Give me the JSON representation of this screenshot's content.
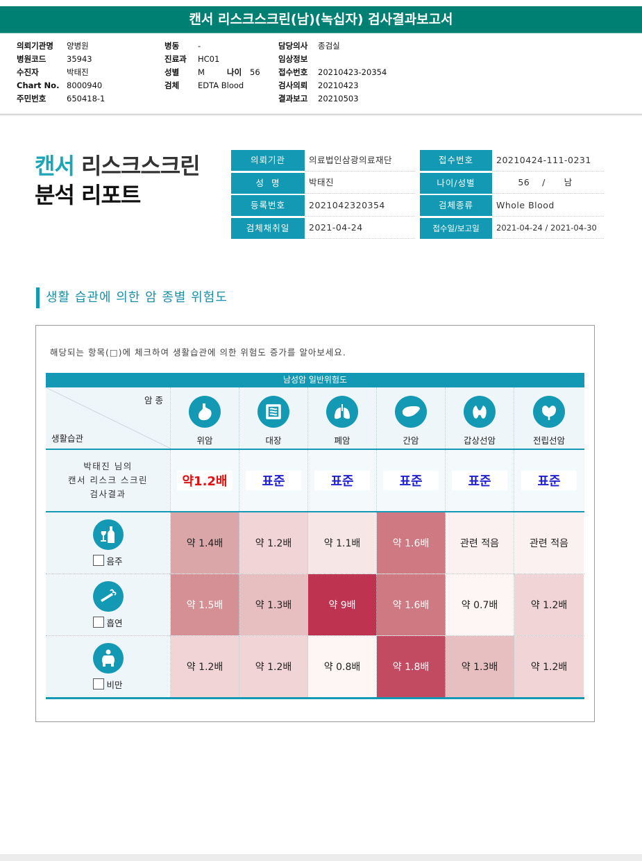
{
  "report_title": "캔서 리스크스크린(남)(녹십자) 검사결과보고서",
  "header": {
    "col1": [
      {
        "k": "의뢰기관명",
        "v": "양병원"
      },
      {
        "k": "병원코드",
        "v": "35943"
      },
      {
        "k": "수진자",
        "v": "박태진"
      },
      {
        "k": "Chart No.",
        "v": "8000940"
      },
      {
        "k": "주민번호",
        "v": "650418-1"
      }
    ],
    "col2": [
      {
        "k": "병동",
        "v": "-"
      },
      {
        "k": "진료과",
        "v": "HC01"
      },
      {
        "k": "성별",
        "v": "M"
      },
      {
        "k": "검체",
        "v": "EDTA Blood"
      }
    ],
    "age_key": "나이",
    "age_val": "56",
    "col3": [
      {
        "k": "담당의사",
        "v": "종검실"
      },
      {
        "k": "임상정보",
        "v": ""
      },
      {
        "k": "접수번호",
        "v": "20210423-20354"
      },
      {
        "k": "검사의뢰",
        "v": "20210423"
      },
      {
        "k": "결과보고",
        "v": "20210503"
      }
    ]
  },
  "big_title": {
    "line1_teal": "캔서",
    "line1_gray": " 리스크스크린",
    "line2": "분석 리포트"
  },
  "meta": {
    "left": [
      {
        "label": "의뢰기관",
        "value": "의료법인삼광의료재단"
      },
      {
        "label": "성  명",
        "value": "박태진"
      },
      {
        "label": "등록번호",
        "value": "2021042320354"
      },
      {
        "label": "검체채취일",
        "value": "2021-04-24"
      }
    ],
    "right": [
      {
        "label": "접수번호",
        "value": "20210424-111-0231"
      },
      {
        "label": "나이/성별",
        "value": "       56    /      남"
      },
      {
        "label": "검체종류",
        "value": "Whole Blood"
      },
      {
        "label": "접수일/보고일",
        "value": "2021-04-24 / 2021-04-30"
      }
    ]
  },
  "section_title": "생활 습관에 의한 암 종별 위험도",
  "panel_note": "해당되는 항목(□)에 체크하여 생활습관에 의한 위험도 증가를 알아보세요.",
  "grid": {
    "head": "남성암 일반위험도",
    "corner_top": "암 종",
    "corner_bottom": "생활습관",
    "organs": [
      "위암",
      "대장",
      "폐암",
      "간암",
      "갑상선암",
      "전립선암"
    ],
    "result_label": [
      "박태진 님의",
      "캔서 리스크 스크린",
      "검사결과"
    ],
    "results": [
      "약1.2배",
      "표준",
      "표준",
      "표준",
      "표준",
      "표준"
    ],
    "habits": [
      {
        "label": "음주",
        "values": [
          "약 1.4배",
          "약 1.2배",
          "약 1.1배",
          "약 1.6배",
          "관련 적음",
          "관련 적음"
        ],
        "colors": [
          "#dba6a8",
          "#f1d4d5",
          "#f7e6e6",
          "#cf7a82",
          "#fbf1f1",
          "#fbf1f1"
        ]
      },
      {
        "label": "흡연",
        "values": [
          "약 1.5배",
          "약 1.3배",
          "약 9배",
          "약 1.6배",
          "약 0.7배",
          "약 1.2배"
        ],
        "colors": [
          "#d59096",
          "#e8bfc1",
          "#be3350",
          "#cf7a82",
          "#fdf6f5",
          "#f1d4d5"
        ]
      },
      {
        "label": "비만",
        "values": [
          "약 1.2배",
          "약 1.2배",
          "약 0.8배",
          "약 1.8배",
          "약 1.3배",
          "약 1.2배"
        ],
        "colors": [
          "#f1d4d5",
          "#f1d4d5",
          "#fdf6f5",
          "#c24b62",
          "#e8bfc1",
          "#f1d4d5"
        ]
      }
    ],
    "result_red_color": "#e01010",
    "result_blue_color": "#1f1fcf"
  }
}
